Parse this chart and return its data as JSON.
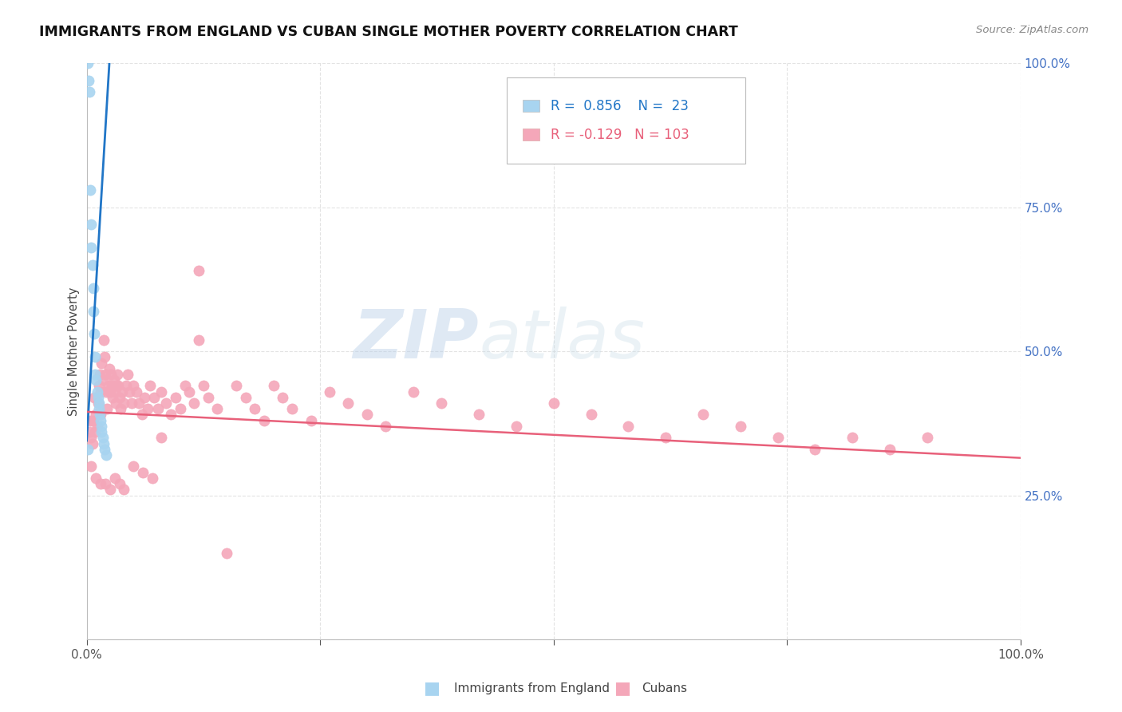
{
  "title": "IMMIGRANTS FROM ENGLAND VS CUBAN SINGLE MOTHER POVERTY CORRELATION CHART",
  "source": "Source: ZipAtlas.com",
  "ylabel": "Single Mother Poverty",
  "legend_label1": "Immigrants from England",
  "legend_label2": "Cubans",
  "r1": 0.856,
  "n1": 23,
  "r2": -0.129,
  "n2": 103,
  "color_england": "#a8d4f0",
  "color_england_line": "#2176c7",
  "color_cuba": "#f4a7b9",
  "color_cuba_line": "#e8607a",
  "watermark_zip": "ZIP",
  "watermark_atlas": "atlas",
  "eng_line_x0": 0.0,
  "eng_line_y0": 0.345,
  "eng_line_x1": 0.025,
  "eng_line_y1": 1.02,
  "cuba_line_x0": 0.0,
  "cuba_line_y0": 0.395,
  "cuba_line_x1": 1.0,
  "cuba_line_y1": 0.315,
  "xlim_max": 1.0,
  "ylim_max": 1.0,
  "ytick_vals": [
    0.0,
    0.25,
    0.5,
    0.75,
    1.0
  ],
  "ytick_labels": [
    "",
    "25.0%",
    "50.0%",
    "75.0%",
    "100.0%"
  ],
  "xtick_vals": [
    0.0,
    0.25,
    0.5,
    0.75,
    1.0
  ],
  "xtick_labels": [
    "0.0%",
    "",
    "",
    "",
    "100.0%"
  ],
  "grid_color": "#dddddd",
  "tick_color_y": "#4472c4",
  "tick_color_x": "#555555",
  "eng_x": [
    0.001,
    0.004,
    0.005,
    0.005,
    0.006,
    0.007,
    0.007,
    0.008,
    0.009,
    0.009,
    0.01,
    0.011,
    0.012,
    0.013,
    0.013,
    0.014,
    0.015,
    0.016,
    0.016,
    0.017,
    0.018,
    0.019,
    0.021
  ],
  "eng_y": [
    0.33,
    0.78,
    0.72,
    0.68,
    0.65,
    0.61,
    0.57,
    0.53,
    0.49,
    0.46,
    0.45,
    0.43,
    0.42,
    0.41,
    0.4,
    0.39,
    0.38,
    0.37,
    0.36,
    0.35,
    0.34,
    0.33,
    0.32
  ],
  "cuba_x": [
    0.003,
    0.004,
    0.005,
    0.006,
    0.007,
    0.008,
    0.009,
    0.01,
    0.011,
    0.012,
    0.013,
    0.014,
    0.015,
    0.015,
    0.016,
    0.017,
    0.018,
    0.019,
    0.02,
    0.021,
    0.022,
    0.023,
    0.024,
    0.025,
    0.026,
    0.027,
    0.028,
    0.029,
    0.03,
    0.031,
    0.032,
    0.033,
    0.034,
    0.035,
    0.036,
    0.038,
    0.04,
    0.042,
    0.044,
    0.046,
    0.048,
    0.05,
    0.053,
    0.056,
    0.059,
    0.062,
    0.065,
    0.068,
    0.072,
    0.076,
    0.08,
    0.085,
    0.09,
    0.095,
    0.1,
    0.105,
    0.11,
    0.115,
    0.12,
    0.125,
    0.13,
    0.14,
    0.15,
    0.16,
    0.17,
    0.18,
    0.19,
    0.2,
    0.21,
    0.22,
    0.24,
    0.26,
    0.28,
    0.3,
    0.32,
    0.35,
    0.38,
    0.42,
    0.46,
    0.5,
    0.54,
    0.58,
    0.62,
    0.66,
    0.7,
    0.74,
    0.78,
    0.82,
    0.86,
    0.9,
    0.005,
    0.01,
    0.015,
    0.02,
    0.025,
    0.03,
    0.035,
    0.04,
    0.05,
    0.06,
    0.07,
    0.08,
    0.12
  ],
  "cuba_y": [
    0.36,
    0.38,
    0.35,
    0.34,
    0.38,
    0.42,
    0.36,
    0.39,
    0.37,
    0.41,
    0.44,
    0.46,
    0.43,
    0.39,
    0.48,
    0.45,
    0.52,
    0.49,
    0.46,
    0.43,
    0.4,
    0.44,
    0.47,
    0.43,
    0.46,
    0.44,
    0.42,
    0.45,
    0.43,
    0.41,
    0.44,
    0.46,
    0.44,
    0.42,
    0.4,
    0.43,
    0.41,
    0.44,
    0.46,
    0.43,
    0.41,
    0.44,
    0.43,
    0.41,
    0.39,
    0.42,
    0.4,
    0.44,
    0.42,
    0.4,
    0.43,
    0.41,
    0.39,
    0.42,
    0.4,
    0.44,
    0.43,
    0.41,
    0.64,
    0.44,
    0.42,
    0.4,
    0.15,
    0.44,
    0.42,
    0.4,
    0.38,
    0.44,
    0.42,
    0.4,
    0.38,
    0.43,
    0.41,
    0.39,
    0.37,
    0.43,
    0.41,
    0.39,
    0.37,
    0.41,
    0.39,
    0.37,
    0.35,
    0.39,
    0.37,
    0.35,
    0.33,
    0.35,
    0.33,
    0.35,
    0.3,
    0.28,
    0.27,
    0.27,
    0.26,
    0.28,
    0.27,
    0.26,
    0.3,
    0.29,
    0.28,
    0.35,
    0.52
  ]
}
